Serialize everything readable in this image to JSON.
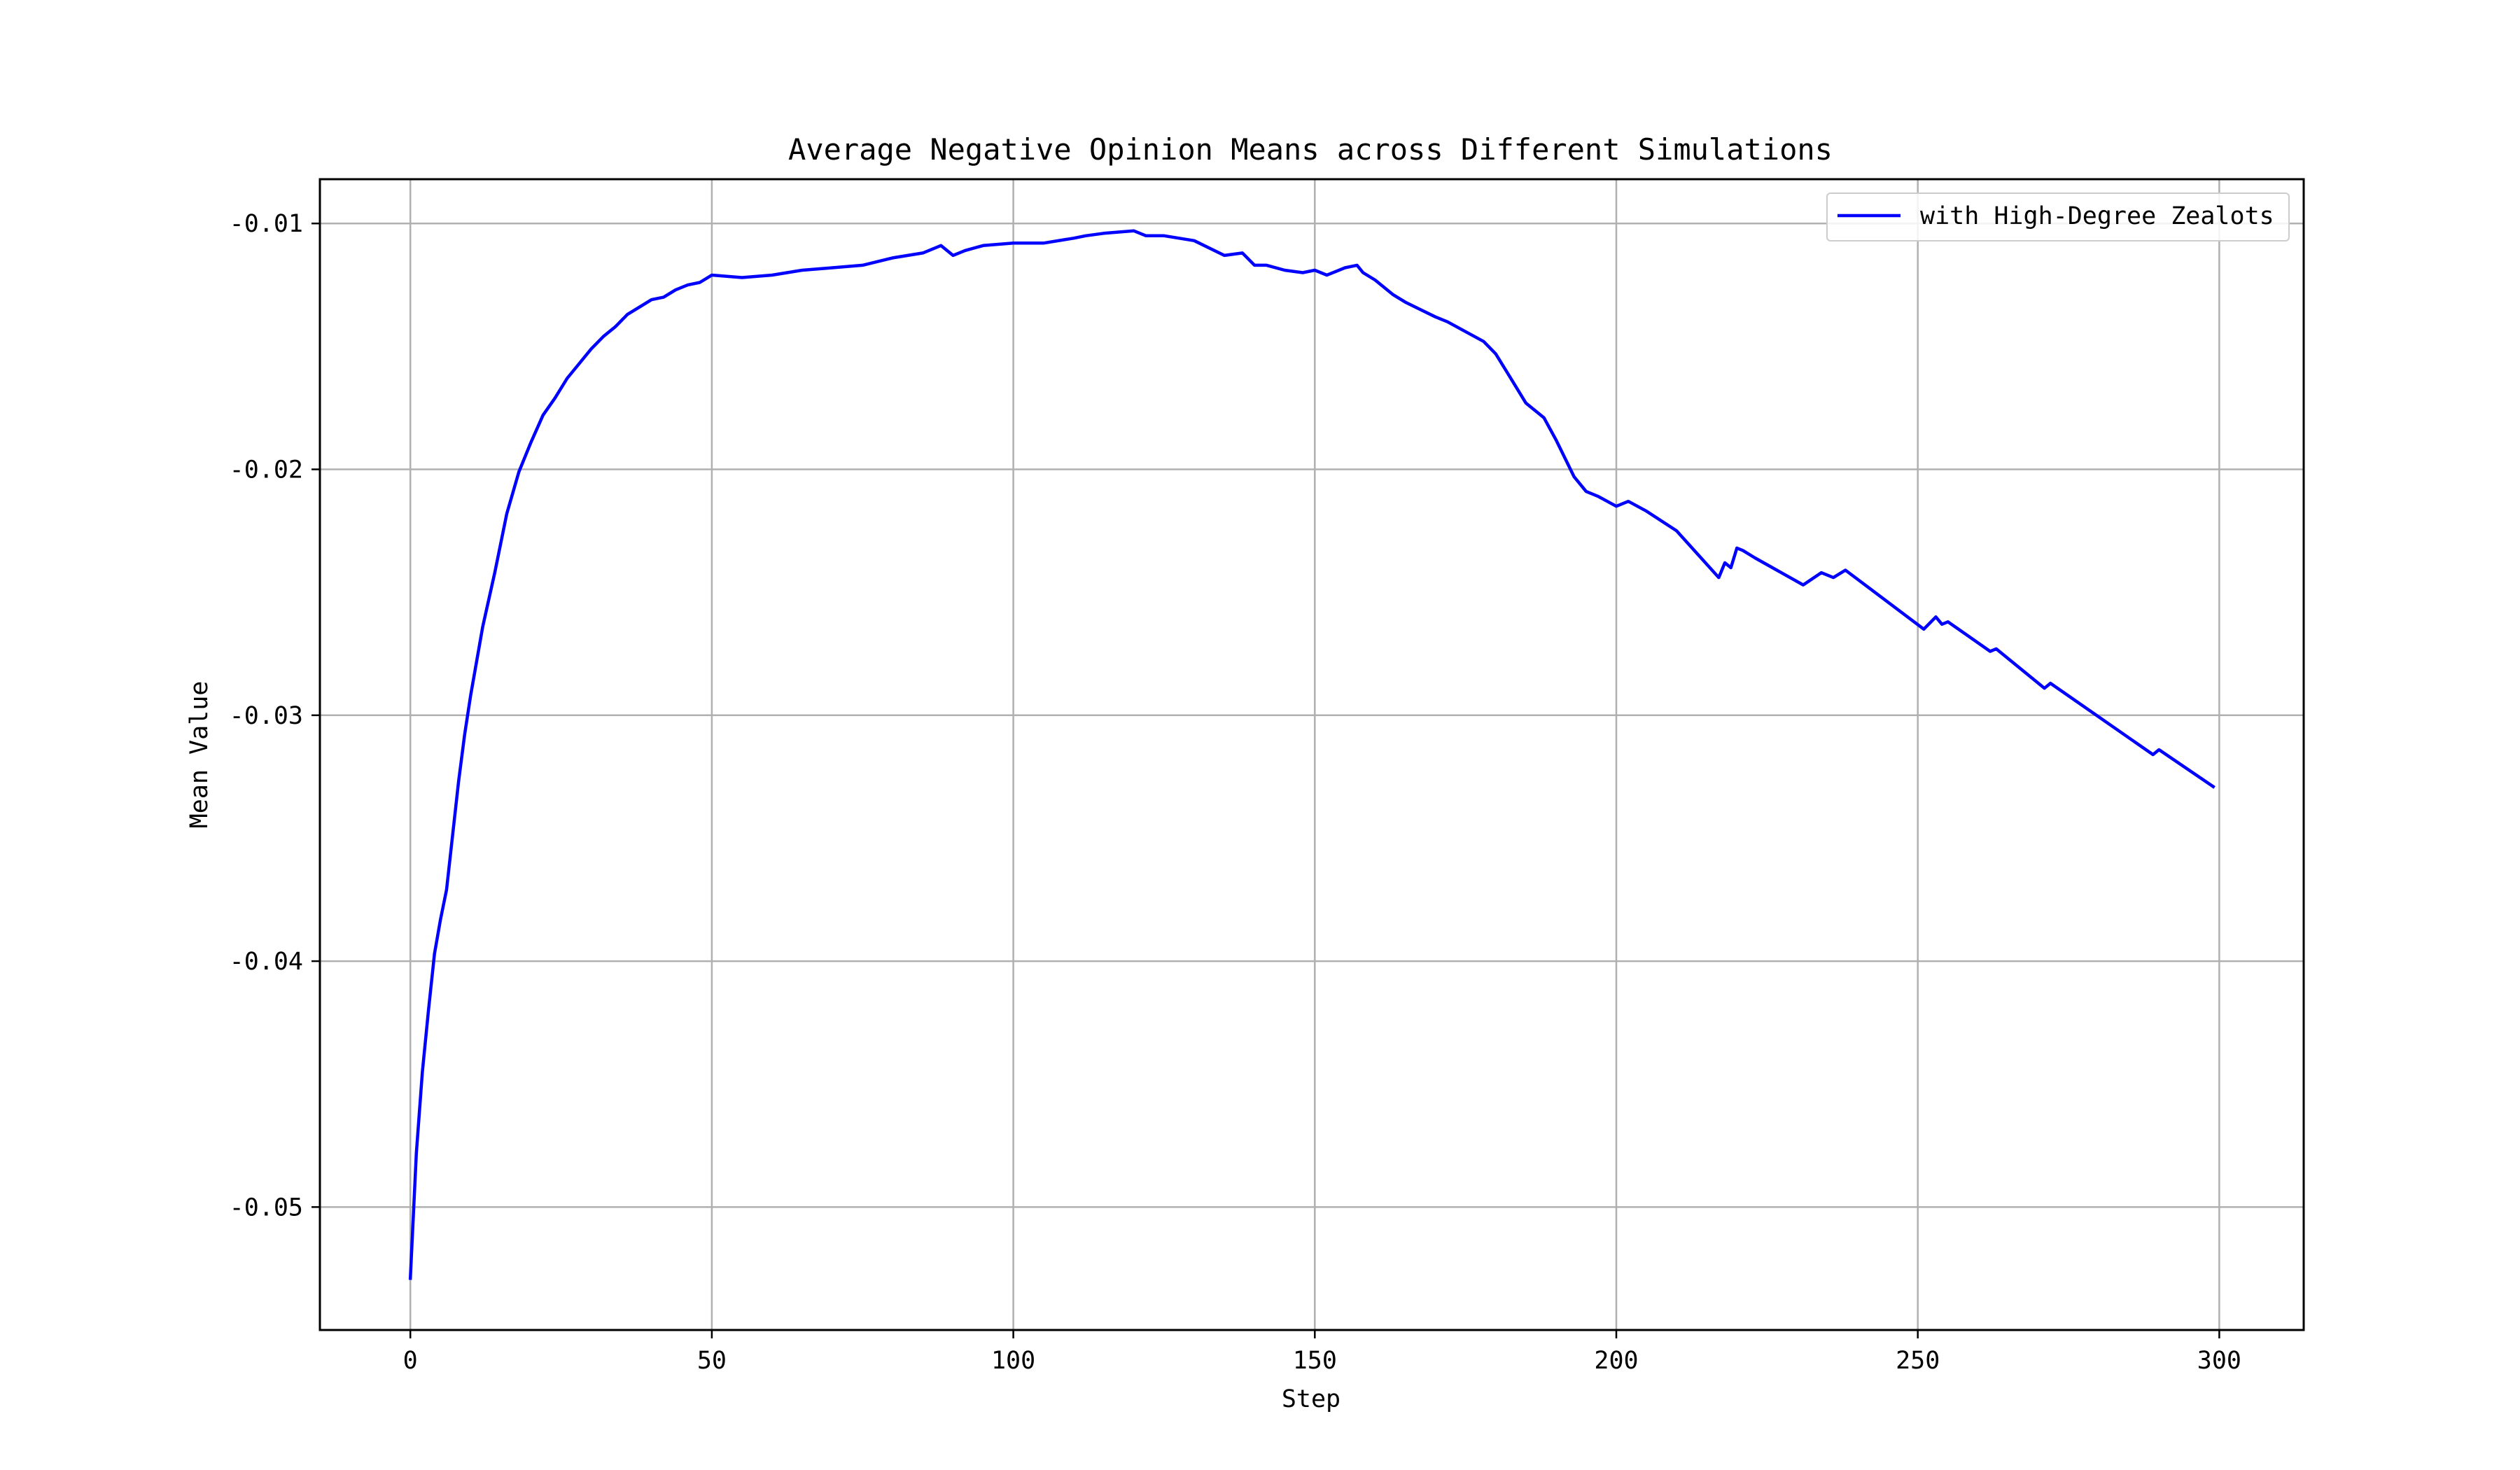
{
  "chart_data": {
    "type": "line",
    "title": "Average Negative Opinion Means across Different Simulations",
    "xlabel": "Step",
    "ylabel": "Mean Value",
    "xlim": [
      -15,
      314
    ],
    "ylim": [
      -0.055,
      -0.0082
    ],
    "xticks": [
      0,
      50,
      100,
      150,
      200,
      250,
      300
    ],
    "yticks": [
      -0.05,
      -0.04,
      -0.03,
      -0.02,
      -0.01
    ],
    "xtick_labels": [
      "0",
      "50",
      "100",
      "150",
      "200",
      "250",
      "300"
    ],
    "ytick_labels": [
      "-0.05",
      "-0.04",
      "-0.03",
      "-0.02",
      "-0.01"
    ],
    "grid": true,
    "legend_position": "top-right",
    "series": [
      {
        "name": "with High-Degree Zealots",
        "color": "#0000ff",
        "x": [
          0,
          1,
          2,
          3,
          4,
          5,
          6,
          7,
          8,
          9,
          10,
          12,
          14,
          16,
          18,
          20,
          22,
          24,
          26,
          28,
          30,
          32,
          34,
          36,
          38,
          40,
          42,
          44,
          46,
          48,
          50,
          55,
          60,
          65,
          70,
          75,
          80,
          85,
          88,
          90,
          92,
          95,
          100,
          102,
          105,
          110,
          112,
          115,
          120,
          122,
          125,
          130,
          135,
          138,
          140,
          142,
          145,
          148,
          150,
          152,
          155,
          157,
          158,
          160,
          163,
          165,
          170,
          172,
          175,
          178,
          180,
          182,
          185,
          188,
          190,
          192,
          193,
          195,
          197,
          200,
          202,
          205,
          210,
          217,
          218,
          219,
          220,
          221,
          223,
          231,
          234,
          236,
          238,
          251,
          253,
          254,
          255,
          262,
          263,
          270,
          271,
          272,
          289,
          290,
          299
        ],
        "y": [
          -0.0529,
          -0.0478,
          -0.0445,
          -0.042,
          -0.0397,
          -0.0383,
          -0.0371,
          -0.0349,
          -0.0327,
          -0.0308,
          -0.0292,
          -0.0264,
          -0.0242,
          -0.0218,
          -0.0201,
          -0.0189,
          -0.0178,
          -0.0171,
          -0.0163,
          -0.0157,
          -0.0151,
          -0.0146,
          -0.0142,
          -0.0137,
          -0.0134,
          -0.0131,
          -0.013,
          -0.0127,
          -0.0125,
          -0.0124,
          -0.0121,
          -0.0122,
          -0.0121,
          -0.0119,
          -0.0118,
          -0.0117,
          -0.0114,
          -0.0112,
          -0.0109,
          -0.0113,
          -0.0111,
          -0.0109,
          -0.0108,
          -0.0108,
          -0.0108,
          -0.0106,
          -0.0105,
          -0.0104,
          -0.0103,
          -0.0105,
          -0.0105,
          -0.0107,
          -0.0113,
          -0.0112,
          -0.0117,
          -0.0117,
          -0.0119,
          -0.012,
          -0.0119,
          -0.0121,
          -0.0118,
          -0.0117,
          -0.012,
          -0.0123,
          -0.0129,
          -0.0132,
          -0.0138,
          -0.014,
          -0.0144,
          -0.0148,
          -0.0153,
          -0.0161,
          -0.0173,
          -0.0179,
          -0.0188,
          -0.0198,
          -0.0203,
          -0.0209,
          -0.0211,
          -0.0215,
          -0.0213,
          -0.0217,
          -0.0225,
          -0.0244,
          -0.0238,
          -0.024,
          -0.0232,
          -0.0233,
          -0.0236,
          -0.0247,
          -0.0242,
          -0.0244,
          -0.0241,
          -0.0265,
          -0.026,
          -0.0263,
          -0.0262,
          -0.0274,
          -0.0273,
          -0.0287,
          -0.0289,
          -0.0287,
          -0.0316,
          -0.0314,
          -0.0329
        ]
      }
    ]
  }
}
